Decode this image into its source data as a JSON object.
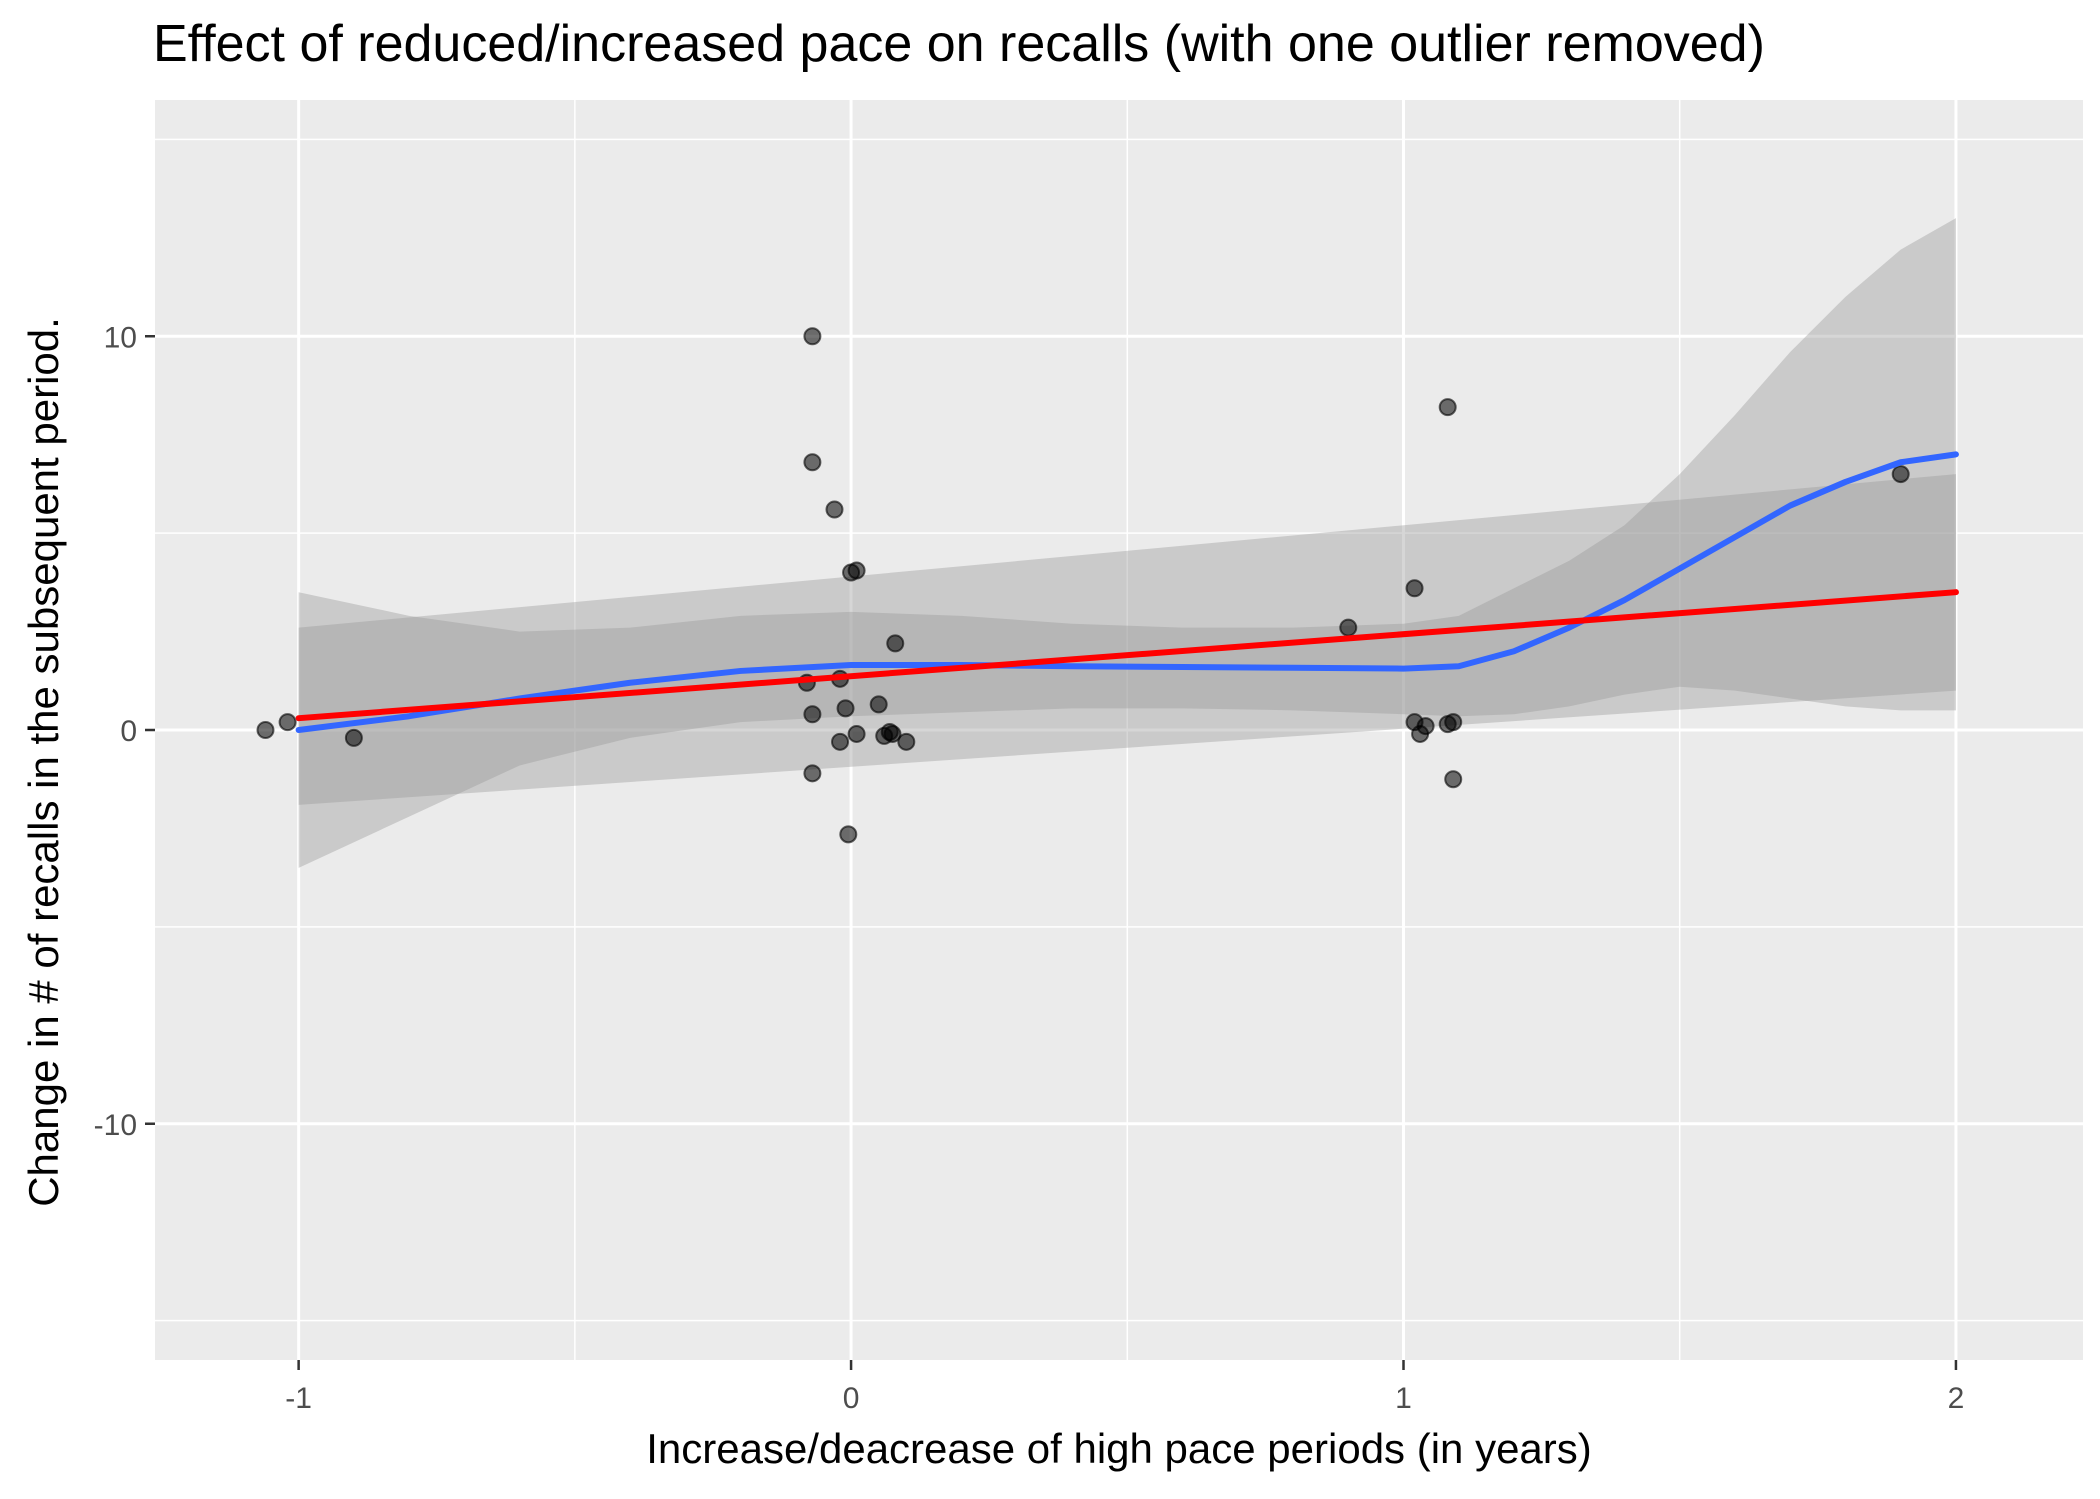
{
  "chart_data": {
    "type": "scatter",
    "title": "Effect of reduced/increased pace on recalls (with one outlier removed)",
    "xlabel": "Increase/deacrease of high pace periods (in years)",
    "ylabel": "Change in # of recalls in the subsequent period.",
    "xlim": [
      -1.26,
      2.23
    ],
    "ylim": [
      -16.0,
      16.0
    ],
    "x_ticks": [
      -1,
      0,
      1,
      2
    ],
    "x_tick_labels": [
      "-1",
      "0",
      "1",
      "2"
    ],
    "y_ticks": [
      -10,
      0,
      10
    ],
    "y_tick_labels": [
      "-10",
      "0",
      "10"
    ],
    "x_minor_gridlines": [
      -0.5,
      0.5,
      1.5
    ],
    "y_minor_gridlines": [
      -15,
      -5,
      5,
      15
    ],
    "grid": true,
    "colors": {
      "panel_background": "#ebebeb",
      "grid_line": "#ffffff",
      "points": "#000000",
      "loess_line": "#3366ff",
      "linear_fit": "#ff0000",
      "confidence_band": "#999999"
    },
    "points": [
      {
        "x": -1.06,
        "y": 0.0
      },
      {
        "x": -1.02,
        "y": 0.2
      },
      {
        "x": -0.9,
        "y": -0.2
      },
      {
        "x": -0.07,
        "y": 10.0
      },
      {
        "x": -0.07,
        "y": 6.8
      },
      {
        "x": -0.03,
        "y": 5.6
      },
      {
        "x": 0.0,
        "y": 4.0
      },
      {
        "x": 0.01,
        "y": 4.05
      },
      {
        "x": 0.08,
        "y": 2.2
      },
      {
        "x": -0.08,
        "y": 1.2
      },
      {
        "x": -0.02,
        "y": 1.3
      },
      {
        "x": -0.07,
        "y": 0.4
      },
      {
        "x": -0.01,
        "y": 0.55
      },
      {
        "x": 0.05,
        "y": 0.65
      },
      {
        "x": 0.06,
        "y": -0.15
      },
      {
        "x": 0.07,
        "y": -0.05
      },
      {
        "x": 0.075,
        "y": -0.1
      },
      {
        "x": 0.1,
        "y": -0.3
      },
      {
        "x": 0.01,
        "y": -0.1
      },
      {
        "x": -0.02,
        "y": -0.3
      },
      {
        "x": -0.07,
        "y": -1.1
      },
      {
        "x": -0.005,
        "y": -2.65
      },
      {
        "x": 0.9,
        "y": 2.6
      },
      {
        "x": 1.02,
        "y": 3.6
      },
      {
        "x": 1.08,
        "y": 8.2
      },
      {
        "x": 1.02,
        "y": 0.2
      },
      {
        "x": 1.04,
        "y": 0.1
      },
      {
        "x": 1.03,
        "y": -0.1
      },
      {
        "x": 1.08,
        "y": 0.15
      },
      {
        "x": 1.09,
        "y": 0.2
      },
      {
        "x": 1.09,
        "y": -1.25
      },
      {
        "x": 1.9,
        "y": 6.5
      }
    ],
    "series": [
      {
        "kind": "loess",
        "x": [
          -1.0,
          -0.8,
          -0.6,
          -0.4,
          -0.2,
          0.0,
          0.2,
          0.4,
          0.6,
          0.8,
          1.0,
          1.1,
          1.2,
          1.3,
          1.4,
          1.5,
          1.6,
          1.7,
          1.8,
          1.9,
          2.0
        ],
        "y": [
          0.0,
          0.35,
          0.8,
          1.2,
          1.5,
          1.65,
          1.65,
          1.62,
          1.6,
          1.58,
          1.56,
          1.62,
          2.0,
          2.6,
          3.3,
          4.1,
          4.9,
          5.7,
          6.3,
          6.8,
          7.0
        ],
        "ci_upper": [
          3.5,
          2.9,
          2.5,
          2.6,
          2.9,
          3.0,
          2.9,
          2.7,
          2.6,
          2.6,
          2.7,
          2.9,
          3.6,
          4.3,
          5.2,
          6.5,
          8.0,
          9.6,
          11.0,
          12.2,
          13.0
        ],
        "ci_lower": [
          -3.5,
          -2.2,
          -0.9,
          -0.2,
          0.2,
          0.35,
          0.45,
          0.55,
          0.55,
          0.5,
          0.4,
          0.35,
          0.4,
          0.6,
          0.9,
          1.1,
          1.0,
          0.8,
          0.6,
          0.5,
          0.5
        ]
      },
      {
        "kind": "linear",
        "x": [
          -1.0,
          2.0
        ],
        "y": [
          0.3,
          3.5
        ],
        "ci_upper": [
          2.6,
          6.5
        ],
        "ci_lower": [
          -1.9,
          1.0
        ]
      }
    ]
  }
}
